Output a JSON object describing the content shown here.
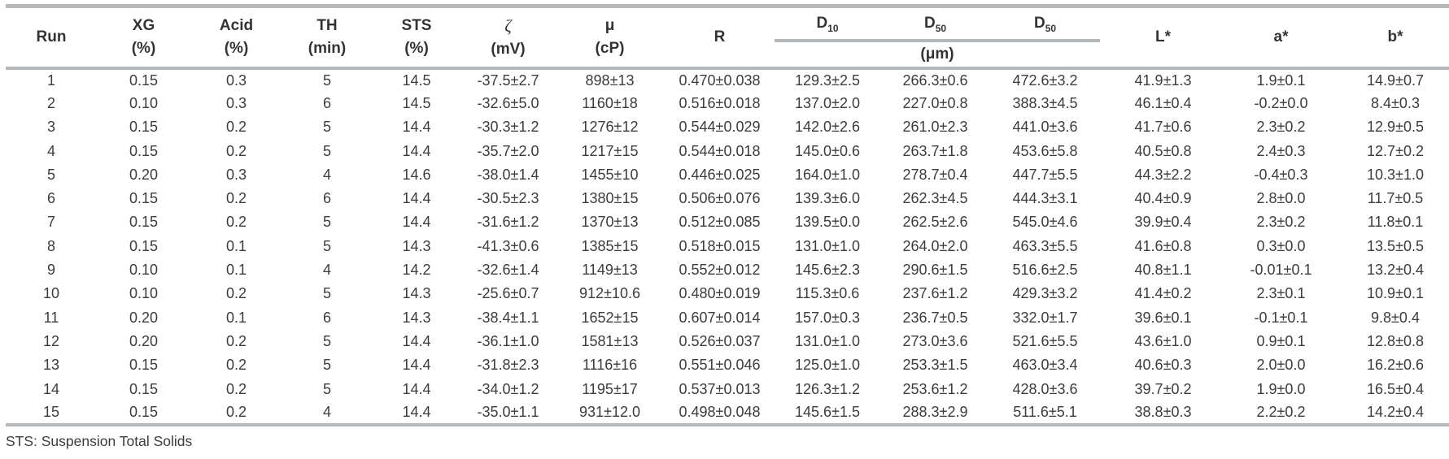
{
  "colors": {
    "rule": "#b6b9bb",
    "text": "#3c3c3c"
  },
  "table": {
    "columns": [
      {
        "label": "Run",
        "unit": ""
      },
      {
        "label": "XG",
        "unit": "(%)"
      },
      {
        "label": "Acid",
        "unit": "(%)"
      },
      {
        "label": "TH",
        "unit": "(min)"
      },
      {
        "label": "STS",
        "unit": "(%)"
      },
      {
        "label": "ζ",
        "unit": "(mV)"
      },
      {
        "label": "μ",
        "unit": "(cP)"
      },
      {
        "label": "R",
        "unit": ""
      }
    ],
    "d_group": {
      "columns": [
        {
          "base": "D",
          "sub": "10"
        },
        {
          "base": "D",
          "sub": "50"
        },
        {
          "base": "D",
          "sub": "50"
        }
      ],
      "unit": "(μm)"
    },
    "color_columns": [
      "L*",
      "a*",
      "b*"
    ],
    "rows": [
      [
        "1",
        "0.15",
        "0.3",
        "5",
        "14.5",
        "-37.5±2.7",
        "898±13",
        "0.470±0.038",
        "129.3±2.5",
        "266.3±0.6",
        "472.6±3.2",
        "41.9±1.3",
        "1.9±0.1",
        "14.9±0.7"
      ],
      [
        "2",
        "0.10",
        "0.3",
        "6",
        "14.5",
        "-32.6±5.0",
        "1160±18",
        "0.516±0.018",
        "137.0±2.0",
        "227.0±0.8",
        "388.3±4.5",
        "46.1±0.4",
        "-0.2±0.0",
        "8.4±0.3"
      ],
      [
        "3",
        "0.15",
        "0.2",
        "5",
        "14.4",
        "-30.3±1.2",
        "1276±12",
        "0.544±0.029",
        "142.0±2.6",
        "261.0±2.3",
        "441.0±3.6",
        "41.7±0.6",
        "2.3±0.2",
        "12.9±0.5"
      ],
      [
        "4",
        "0.15",
        "0.2",
        "5",
        "14.4",
        "-35.7±2.0",
        "1217±15",
        "0.544±0.018",
        "145.0±0.6",
        "263.7±1.8",
        "453.6±5.8",
        "40.5±0.8",
        "2.4±0.3",
        "12.7±0.2"
      ],
      [
        "5",
        "0.20",
        "0.3",
        "4",
        "14.6",
        "-38.0±1.4",
        "1455±10",
        "0.446±0.025",
        "164.0±1.0",
        "278.7±0.4",
        "447.7±5.5",
        "44.3±2.2",
        "-0.4±0.3",
        "10.3±1.0"
      ],
      [
        "6",
        "0.15",
        "0.2",
        "6",
        "14.4",
        "-30.5±2.3",
        "1380±15",
        "0.506±0.076",
        "139.3±6.0",
        "262.3±4.5",
        "444.3±3.1",
        "40.4±0.9",
        "2.8±0.0",
        "11.7±0.5"
      ],
      [
        "7",
        "0.15",
        "0.2",
        "5",
        "14.4",
        "-31.6±1.2",
        "1370±13",
        "0.512±0.085",
        "139.5±0.0",
        "262.5±2.6",
        "545.0±4.6",
        "39.9±0.4",
        "2.3±0.2",
        "11.8±0.1"
      ],
      [
        "8",
        "0.15",
        "0.1",
        "5",
        "14.3",
        "-41.3±0.6",
        "1385±15",
        "0.518±0.015",
        "131.0±1.0",
        "264.0±2.0",
        "463.3±5.5",
        "41.6±0.8",
        "0.3±0.0",
        "13.5±0.5"
      ],
      [
        "9",
        "0.10",
        "0.1",
        "4",
        "14.2",
        "-32.6±1.4",
        "1149±13",
        "0.552±0.012",
        "145.6±2.3",
        "290.6±1.5",
        "516.6±2.5",
        "40.8±1.1",
        "-0.01±0.1",
        "13.2±0.4"
      ],
      [
        "10",
        "0.10",
        "0.2",
        "5",
        "14.3",
        "-25.6±0.7",
        "912±10.6",
        "0.480±0.019",
        "115.3±0.6",
        "237.6±1.2",
        "429.3±3.2",
        "41.4±0.2",
        "2.3±0.1",
        "10.9±0.1"
      ],
      [
        "11",
        "0.20",
        "0.1",
        "6",
        "14.3",
        "-38.4±1.1",
        "1652±15",
        "0.607±0.014",
        "157.0±0.3",
        "236.7±0.5",
        "332.0±1.7",
        "39.6±0.1",
        "-0.1±0.1",
        "9.8±0.4"
      ],
      [
        "12",
        "0.20",
        "0.2",
        "5",
        "14.4",
        "-36.1±1.0",
        "1581±13",
        "0.526±0.037",
        "131.0±1.0",
        "273.0±3.6",
        "521.6±5.5",
        "43.6±1.0",
        "0.9±0.1",
        "12.8±0.8"
      ],
      [
        "13",
        "0.15",
        "0.2",
        "5",
        "14.4",
        "-31.8±2.3",
        "1116±16",
        "0.551±0.046",
        "125.0±1.0",
        "253.3±1.5",
        "463.0±3.4",
        "40.6±0.3",
        "2.0±0.0",
        "16.2±0.6"
      ],
      [
        "14",
        "0.15",
        "0.2",
        "5",
        "14.4",
        "-34.0±1.2",
        "1195±17",
        "0.537±0.013",
        "126.3±1.2",
        "253.6±1.2",
        "428.0±3.6",
        "39.7±0.2",
        "1.9±0.0",
        "16.5±0.4"
      ],
      [
        "15",
        "0.15",
        "0.2",
        "4",
        "14.4",
        "-35.0±1.1",
        "931±12.0",
        "0.498±0.048",
        "145.6±1.5",
        "288.3±2.9",
        "511.6±5.1",
        "38.8±0.3",
        "2.2±0.2",
        "14.2±0.4"
      ]
    ],
    "footnote": "STS: Suspension Total Solids"
  }
}
